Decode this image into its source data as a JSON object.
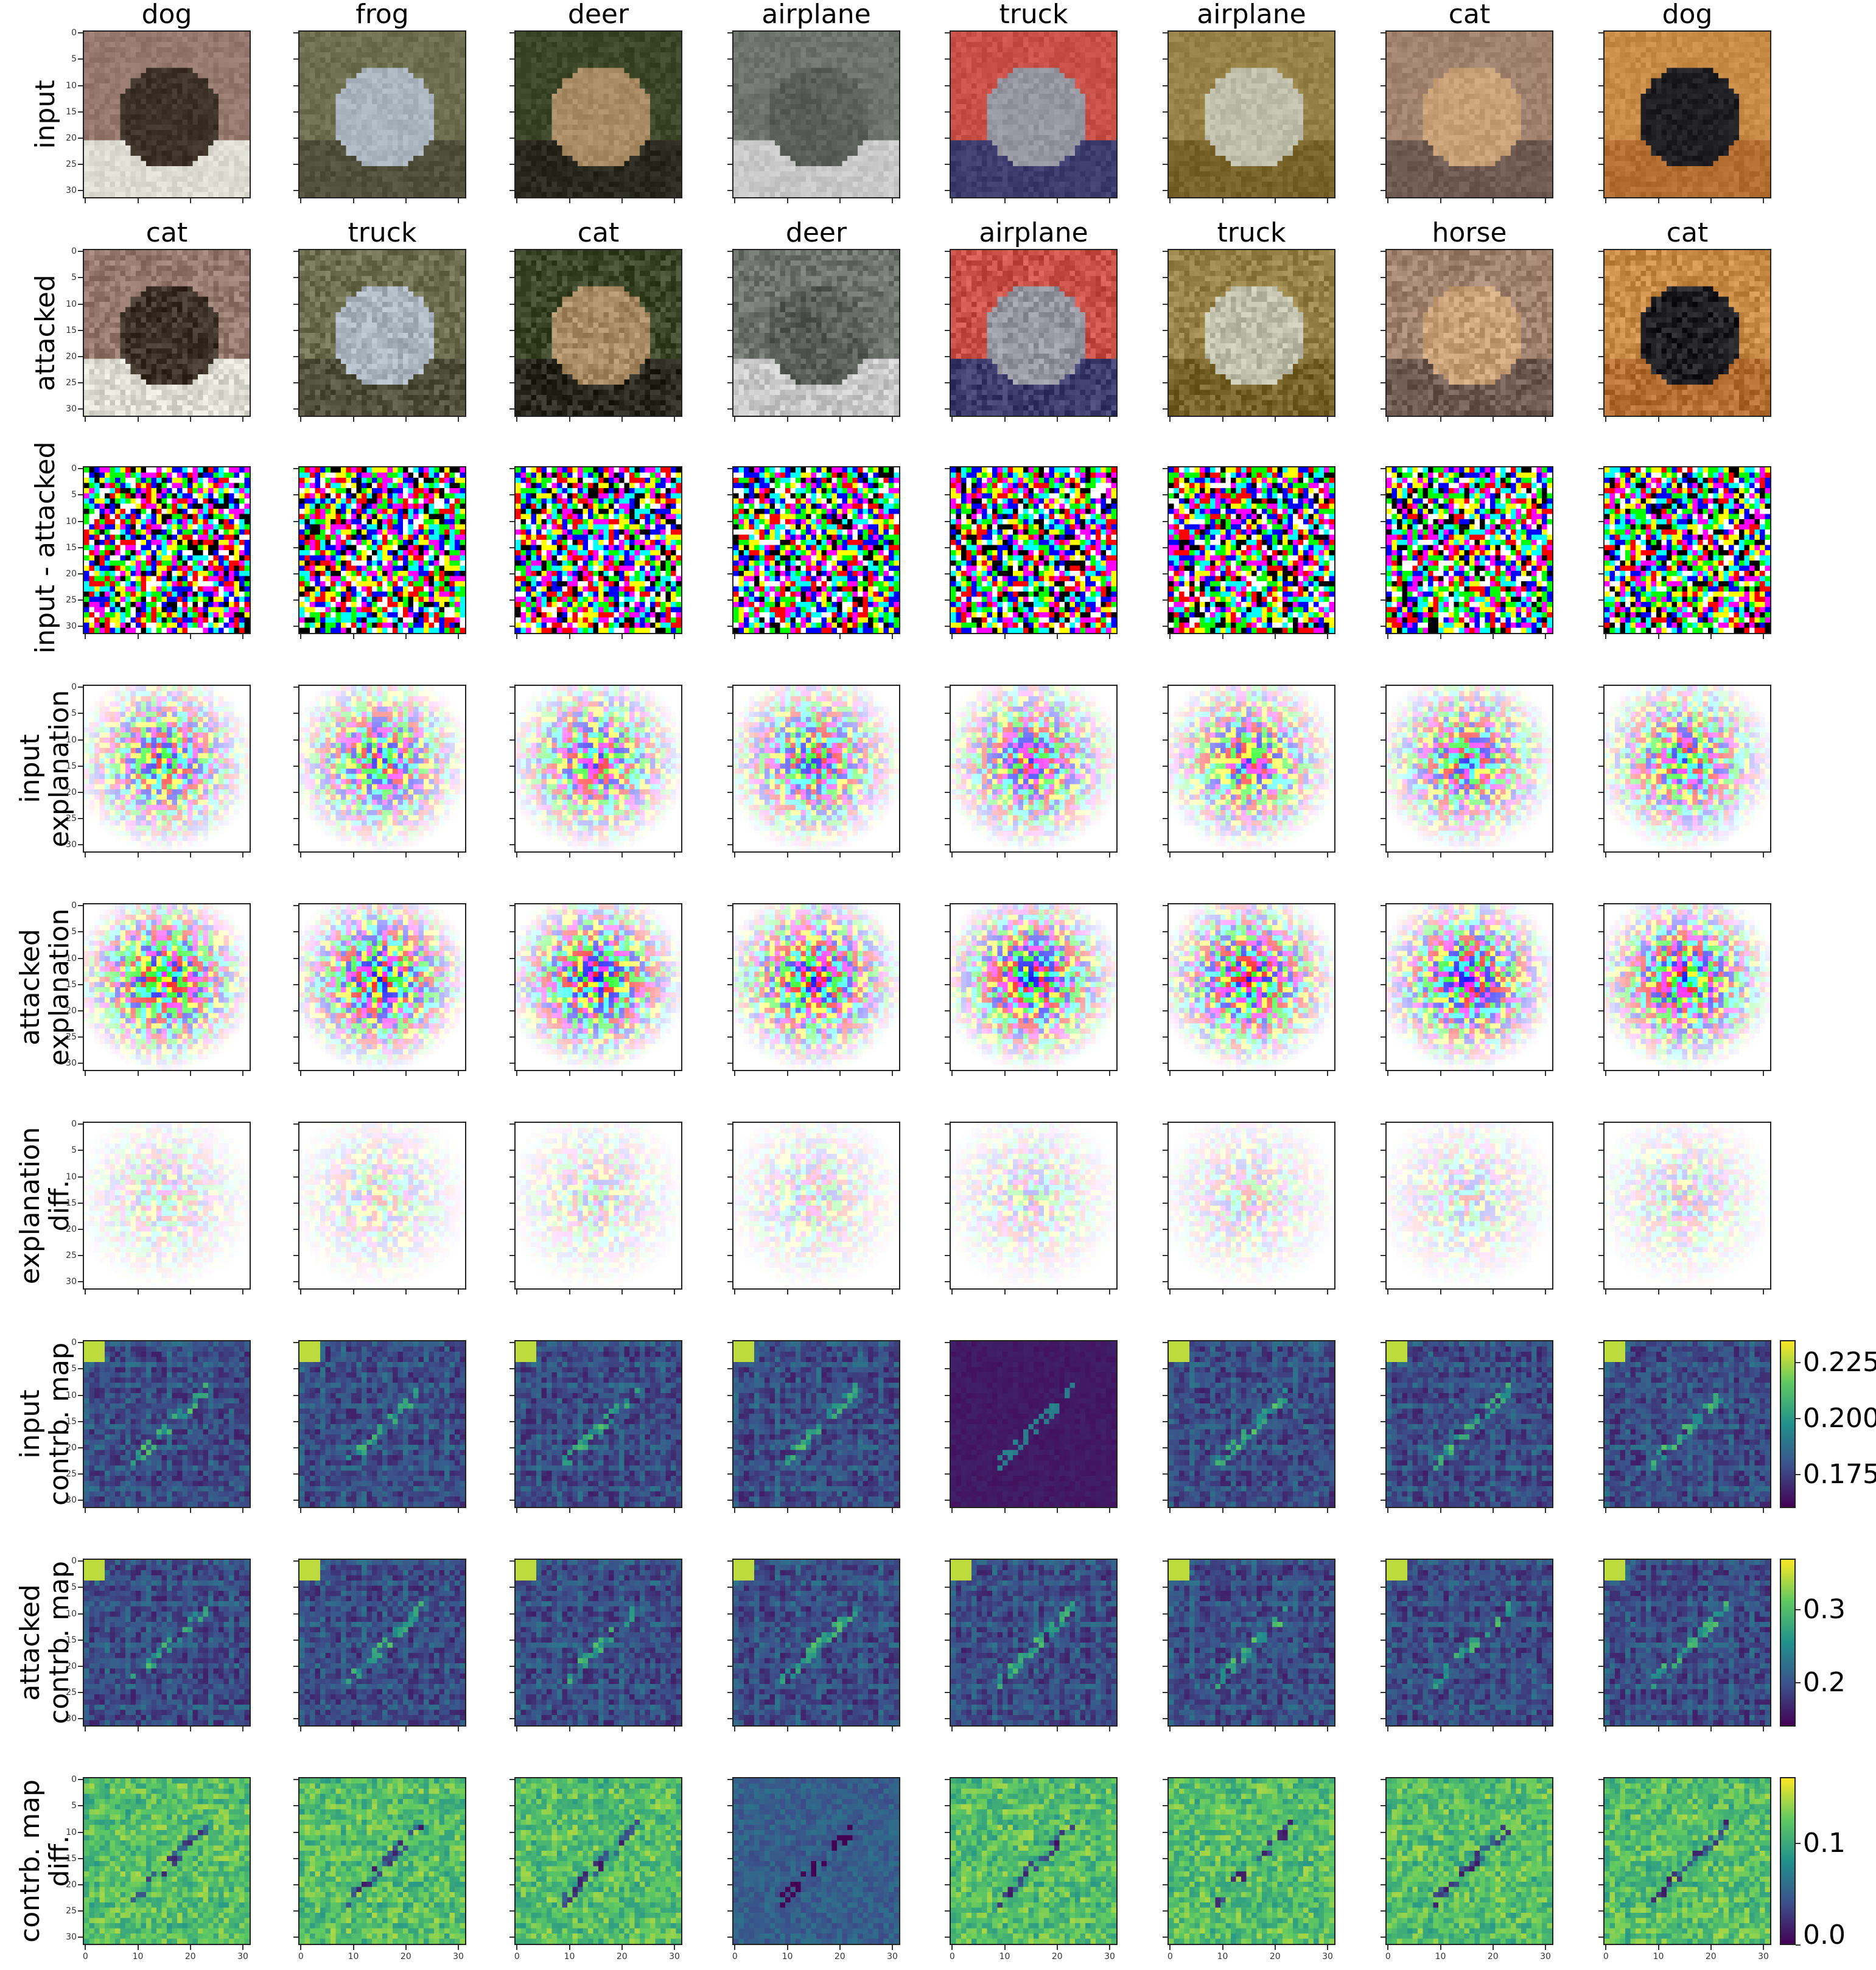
{
  "column_titles": {
    "input": [
      "dog",
      "frog",
      "deer",
      "airplane",
      "truck",
      "airplane",
      "cat",
      "dog"
    ],
    "attacked": [
      "cat",
      "truck",
      "cat",
      "deer",
      "airplane",
      "truck",
      "horse",
      "cat"
    ]
  },
  "row_labels": [
    [
      "input"
    ],
    [
      "attacked"
    ],
    [
      "input - attacked"
    ],
    [
      "input",
      "explanation"
    ],
    [
      "attacked",
      "explanation"
    ],
    [
      "explanation",
      "diff."
    ],
    [
      "input",
      "contrb. map"
    ],
    [
      "attacked",
      "contrb. map"
    ],
    [
      "contrb. map",
      "diff."
    ]
  ],
  "axis": {
    "y_ticks": [
      "0",
      "5",
      "10",
      "15",
      "20",
      "25",
      "30"
    ],
    "x_ticks": [
      "0",
      "10",
      "20",
      "30"
    ],
    "range": [
      0,
      31
    ]
  },
  "colorbars": [
    {
      "row": 6,
      "ticks": [
        "0.225",
        "0.200",
        "0.175"
      ],
      "ticks_value": [
        0.225,
        0.2,
        0.175
      ],
      "min": 0.16,
      "max": 0.235
    },
    {
      "row": 7,
      "ticks": [
        "0.3",
        "0.2"
      ],
      "ticks_value": [
        0.3,
        0.2
      ],
      "min": 0.14,
      "max": 0.37
    },
    {
      "row": 8,
      "ticks": [
        "0.1",
        "0.0"
      ],
      "ticks_value": [
        0.1,
        0.0
      ],
      "min": 0.0,
      "max": 0.165
    }
  ],
  "colors": {
    "viridis": [
      "#440154",
      "#3b528b",
      "#21918c",
      "#5ec962",
      "#fde725"
    ],
    "noise_palette": [
      "#ff0000",
      "#00ff00",
      "#0000ff",
      "#ffff00",
      "#00ffff",
      "#ff00ff",
      "#000000",
      "#ffffff"
    ]
  }
}
